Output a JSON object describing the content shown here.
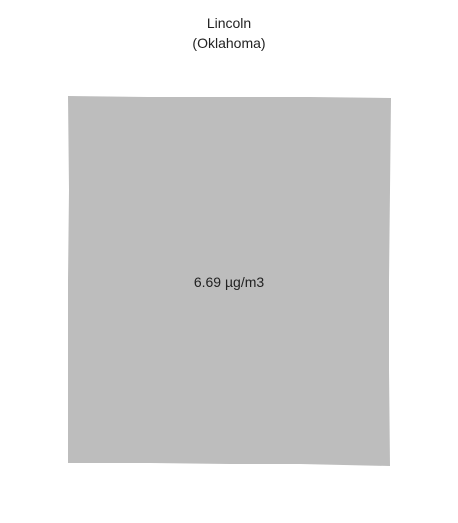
{
  "map": {
    "title_line1": "Lincoln",
    "title_line2": "(Oklahoma)",
    "region": {
      "value_label": "6.69 µg/m3",
      "fill": "#bdbdbd"
    }
  }
}
